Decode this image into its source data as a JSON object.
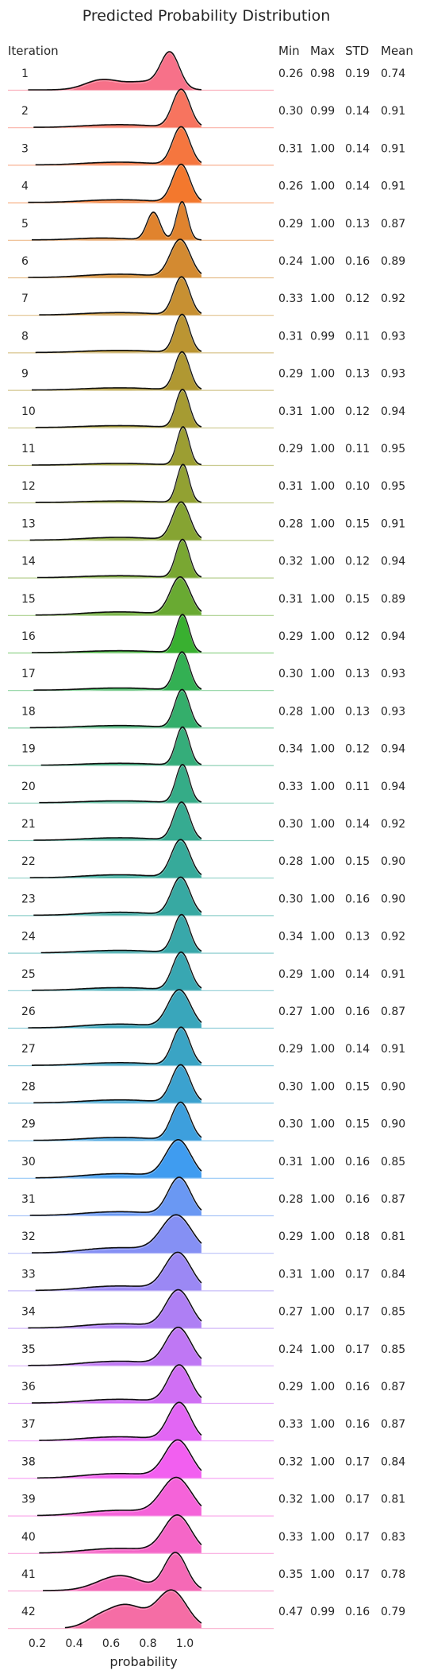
{
  "chart_data": {
    "type": "ridgeline",
    "title": "Predicted Probability Distribution",
    "xlabel": "probability",
    "xticks": [
      "0.2",
      "0.4",
      "0.6",
      "0.8",
      "1.0"
    ],
    "xtick_values": [
      0.2,
      0.4,
      0.6,
      0.8,
      1.0
    ],
    "xlim": [
      0.15,
      1.2
    ],
    "grid": false,
    "columns": [
      "Iteration",
      "Min",
      "Max",
      "STD",
      "Mean"
    ],
    "rows": [
      {
        "iteration": "1",
        "min": "0.26",
        "max": "0.98",
        "std": "0.19",
        "mean": "0.74",
        "color": "#f77189"
      },
      {
        "iteration": "2",
        "min": "0.30",
        "max": "0.99",
        "std": "0.14",
        "mean": "0.91",
        "color": "#f7745f"
      },
      {
        "iteration": "3",
        "min": "0.31",
        "max": "1.00",
        "std": "0.14",
        "mean": "0.91",
        "color": "#f5763f"
      },
      {
        "iteration": "4",
        "min": "0.26",
        "max": "1.00",
        "std": "0.14",
        "mean": "0.91",
        "color": "#f3782d"
      },
      {
        "iteration": "5",
        "min": "0.29",
        "max": "1.00",
        "std": "0.13",
        "mean": "0.87",
        "color": "#e0832e"
      },
      {
        "iteration": "6",
        "min": "0.24",
        "max": "1.00",
        "std": "0.16",
        "mean": "0.89",
        "color": "#d38a31"
      },
      {
        "iteration": "7",
        "min": "0.33",
        "max": "1.00",
        "std": "0.12",
        "mean": "0.92",
        "color": "#c79032"
      },
      {
        "iteration": "8",
        "min": "0.31",
        "max": "0.99",
        "std": "0.11",
        "mean": "0.93",
        "color": "#bb9532"
      },
      {
        "iteration": "9",
        "min": "0.29",
        "max": "1.00",
        "std": "0.13",
        "mean": "0.93",
        "color": "#b09832"
      },
      {
        "iteration": "10",
        "min": "0.31",
        "max": "1.00",
        "std": "0.12",
        "mean": "0.94",
        "color": "#a69b32"
      },
      {
        "iteration": "11",
        "min": "0.29",
        "max": "1.00",
        "std": "0.11",
        "mean": "0.95",
        "color": "#9c9e32"
      },
      {
        "iteration": "12",
        "min": "0.31",
        "max": "1.00",
        "std": "0.10",
        "mean": "0.95",
        "color": "#92a132"
      },
      {
        "iteration": "13",
        "min": "0.28",
        "max": "1.00",
        "std": "0.15",
        "mean": "0.91",
        "color": "#86a432"
      },
      {
        "iteration": "14",
        "min": "0.32",
        "max": "1.00",
        "std": "0.12",
        "mean": "0.94",
        "color": "#79a732"
      },
      {
        "iteration": "15",
        "min": "0.31",
        "max": "1.00",
        "std": "0.15",
        "mean": "0.89",
        "color": "#69aa32"
      },
      {
        "iteration": "16",
        "min": "0.29",
        "max": "1.00",
        "std": "0.12",
        "mean": "0.94",
        "color": "#39b030"
      },
      {
        "iteration": "17",
        "min": "0.30",
        "max": "1.00",
        "std": "0.13",
        "mean": "0.93",
        "color": "#33b053"
      },
      {
        "iteration": "18",
        "min": "0.28",
        "max": "1.00",
        "std": "0.13",
        "mean": "0.93",
        "color": "#34ae6b"
      },
      {
        "iteration": "19",
        "min": "0.34",
        "max": "1.00",
        "std": "0.12",
        "mean": "0.94",
        "color": "#35ad7a"
      },
      {
        "iteration": "20",
        "min": "0.33",
        "max": "1.00",
        "std": "0.11",
        "mean": "0.94",
        "color": "#35ac87"
      },
      {
        "iteration": "21",
        "min": "0.30",
        "max": "1.00",
        "std": "0.14",
        "mean": "0.92",
        "color": "#36ab91"
      },
      {
        "iteration": "22",
        "min": "0.28",
        "max": "1.00",
        "std": "0.15",
        "mean": "0.90",
        "color": "#36aa9a"
      },
      {
        "iteration": "23",
        "min": "0.30",
        "max": "1.00",
        "std": "0.16",
        "mean": "0.90",
        "color": "#37a9a2"
      },
      {
        "iteration": "24",
        "min": "0.34",
        "max": "1.00",
        "std": "0.13",
        "mean": "0.92",
        "color": "#38a8aa"
      },
      {
        "iteration": "25",
        "min": "0.29",
        "max": "1.00",
        "std": "0.14",
        "mean": "0.91",
        "color": "#38a7b2"
      },
      {
        "iteration": "26",
        "min": "0.27",
        "max": "1.00",
        "std": "0.16",
        "mean": "0.87",
        "color": "#39a6bb"
      },
      {
        "iteration": "27",
        "min": "0.29",
        "max": "1.00",
        "std": "0.14",
        "mean": "0.91",
        "color": "#3aa4c4"
      },
      {
        "iteration": "28",
        "min": "0.30",
        "max": "1.00",
        "std": "0.15",
        "mean": "0.90",
        "color": "#3ba2cf"
      },
      {
        "iteration": "29",
        "min": "0.30",
        "max": "1.00",
        "std": "0.15",
        "mean": "0.90",
        "color": "#3d9fdd"
      },
      {
        "iteration": "30",
        "min": "0.31",
        "max": "1.00",
        "std": "0.16",
        "mean": "0.85",
        "color": "#3f9cf0"
      },
      {
        "iteration": "31",
        "min": "0.28",
        "max": "1.00",
        "std": "0.16",
        "mean": "0.87",
        "color": "#6a98f3"
      },
      {
        "iteration": "32",
        "min": "0.29",
        "max": "1.00",
        "std": "0.18",
        "mean": "0.81",
        "color": "#8590f4"
      },
      {
        "iteration": "33",
        "min": "0.31",
        "max": "1.00",
        "std": "0.17",
        "mean": "0.84",
        "color": "#9b88f4"
      },
      {
        "iteration": "34",
        "min": "0.27",
        "max": "1.00",
        "std": "0.17",
        "mean": "0.85",
        "color": "#ae7ff4"
      },
      {
        "iteration": "35",
        "min": "0.24",
        "max": "1.00",
        "std": "0.17",
        "mean": "0.85",
        "color": "#bf77f4"
      },
      {
        "iteration": "36",
        "min": "0.29",
        "max": "1.00",
        "std": "0.16",
        "mean": "0.87",
        "color": "#d06ff4"
      },
      {
        "iteration": "37",
        "min": "0.33",
        "max": "1.00",
        "std": "0.16",
        "mean": "0.87",
        "color": "#e266f4"
      },
      {
        "iteration": "38",
        "min": "0.32",
        "max": "1.00",
        "std": "0.17",
        "mean": "0.84",
        "color": "#f25ff0"
      },
      {
        "iteration": "39",
        "min": "0.32",
        "max": "1.00",
        "std": "0.17",
        "mean": "0.81",
        "color": "#f563d9"
      },
      {
        "iteration": "40",
        "min": "0.33",
        "max": "1.00",
        "std": "0.17",
        "mean": "0.83",
        "color": "#f566c7"
      },
      {
        "iteration": "41",
        "min": "0.35",
        "max": "1.00",
        "std": "0.17",
        "mean": "0.78",
        "color": "#f569b6"
      },
      {
        "iteration": "42",
        "min": "0.47",
        "max": "0.99",
        "std": "0.16",
        "mean": "0.79",
        "color": "#f56da5"
      }
    ]
  }
}
